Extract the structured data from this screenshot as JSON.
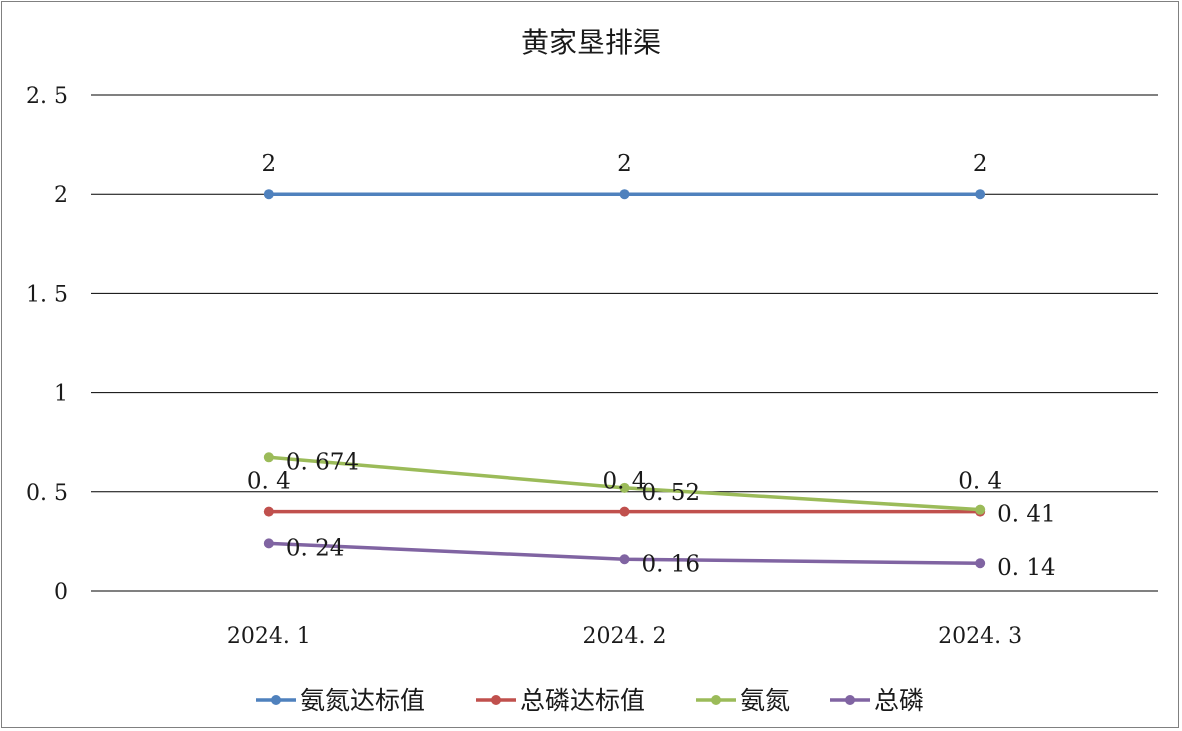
{
  "chart_data": {
    "type": "line",
    "title": "黄家垦排渠",
    "categories": [
      "2024.1",
      "2024.2",
      "2024.3"
    ],
    "y_ticks": [
      "0",
      "0.5",
      "1",
      "1.5",
      "2",
      "2.5"
    ],
    "ylim": [
      0,
      2.5
    ],
    "grid": true,
    "legend_position": "bottom",
    "series": [
      {
        "name": "氨氮达标值",
        "color": "#4f81bd",
        "values": [
          2,
          2,
          2
        ],
        "labels": [
          "2",
          "2",
          "2"
        ],
        "label_pos": "above"
      },
      {
        "name": "总磷达标值",
        "color": "#c0504d",
        "values": [
          0.4,
          0.4,
          0.4
        ],
        "labels": [
          "0.4",
          "0.4",
          "0.4"
        ],
        "label_pos": "above"
      },
      {
        "name": "氨氮",
        "color": "#9bbb59",
        "values": [
          0.674,
          0.52,
          0.41
        ],
        "labels": [
          "0.674",
          "0.52",
          "0.41"
        ],
        "label_pos": "right"
      },
      {
        "name": "总磷",
        "color": "#8064a2",
        "values": [
          0.24,
          0.16,
          0.14
        ],
        "labels": [
          "0.24",
          "0.16",
          "0.14"
        ],
        "label_pos": "right"
      }
    ]
  }
}
